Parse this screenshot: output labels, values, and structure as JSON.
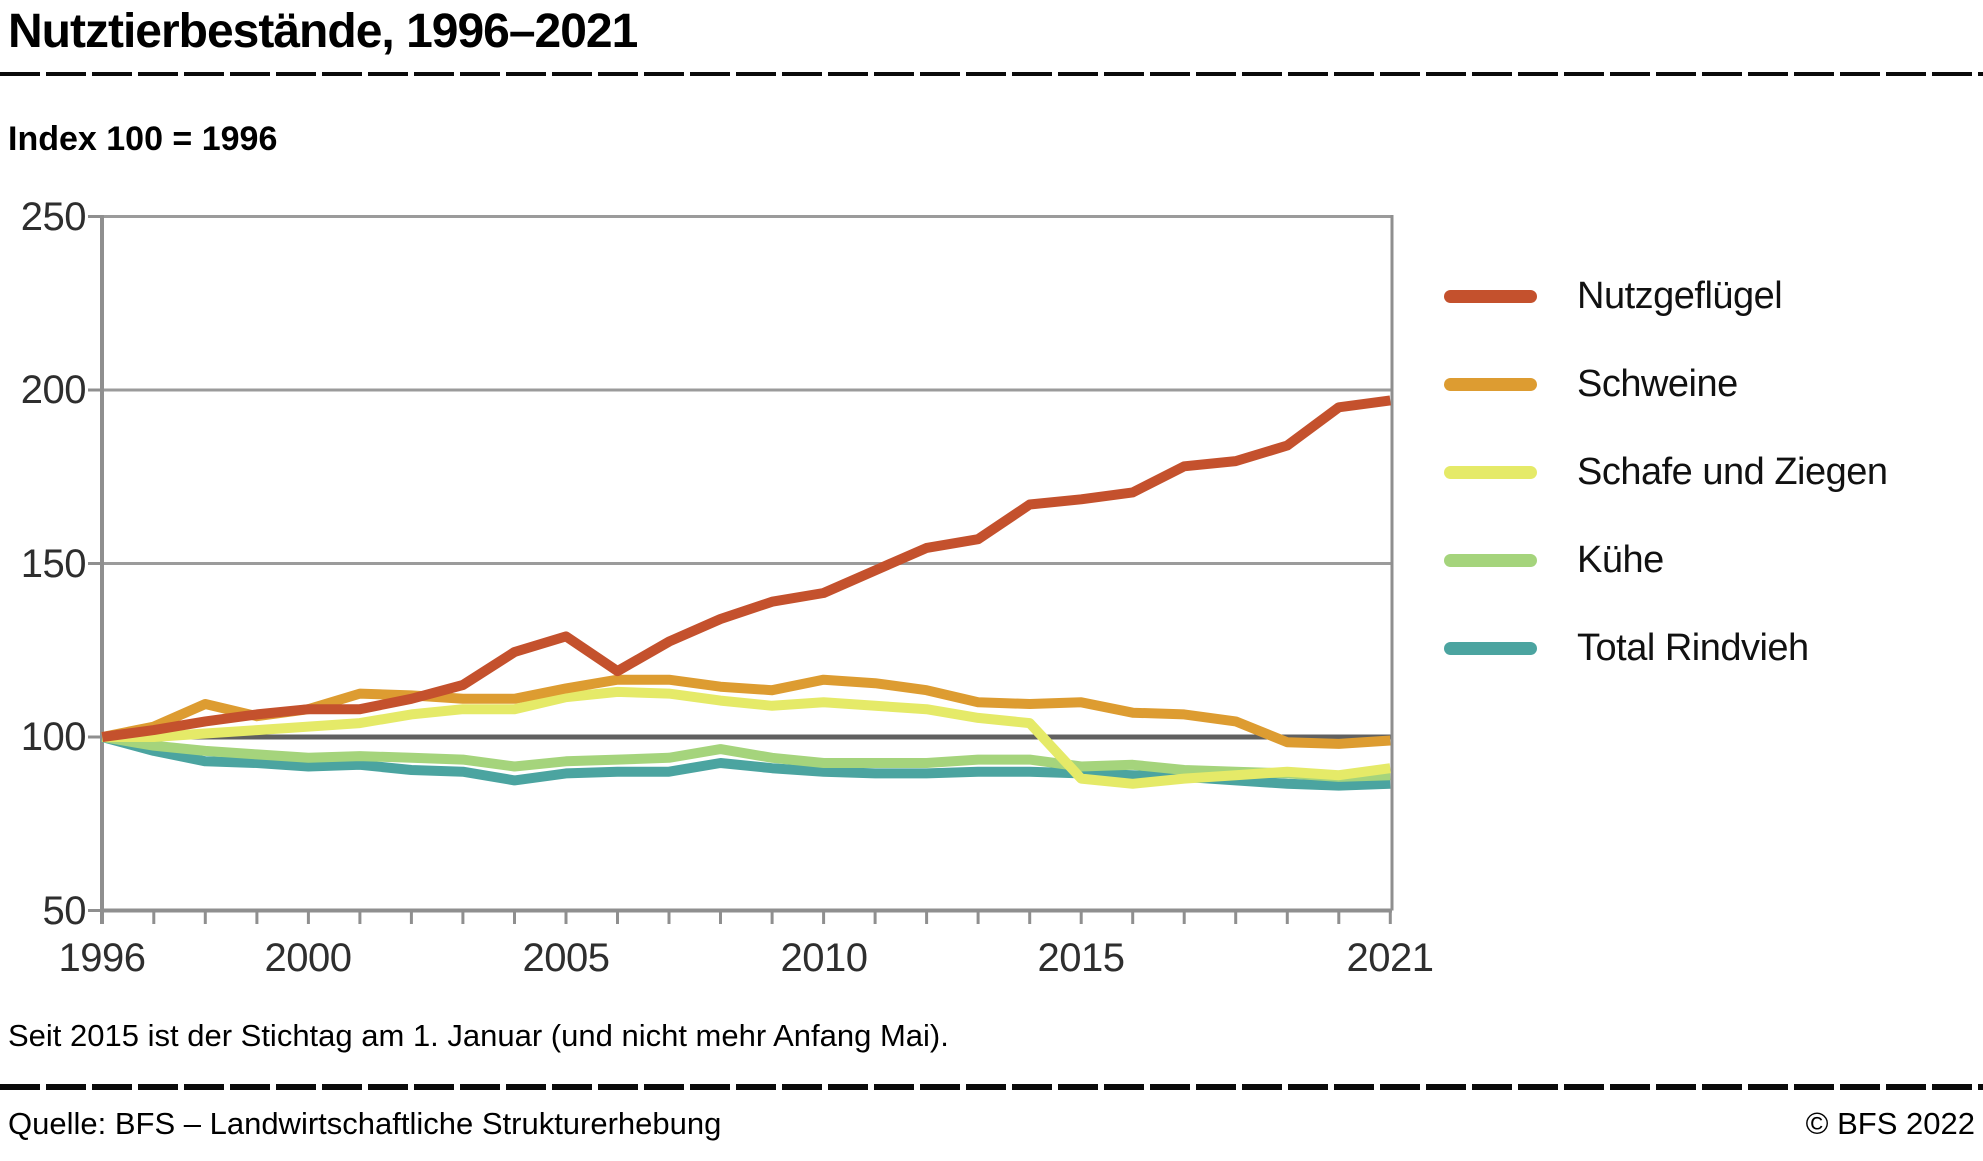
{
  "header": {
    "title": "Nutztierbestände, 1996–2021",
    "subtitle": "Index 100 = 1996"
  },
  "footer": {
    "footnote": "Seit 2015 ist der Stichtag am 1. Januar (und nicht mehr Anfang Mai).",
    "source": "Quelle: BFS – Landwirtschaftliche Strukturerhebung",
    "copyright": "© BFS 2022"
  },
  "chart_data": {
    "type": "line",
    "title": "Nutztierbestände, 1996–2021",
    "subtitle": "Index 100 = 1996",
    "xlabel": "",
    "ylabel": "",
    "ylim": [
      50,
      250
    ],
    "baseline_value": 100,
    "grid": "horizontal",
    "legend_position": "right",
    "x": [
      1996,
      1997,
      1998,
      1999,
      2000,
      2001,
      2002,
      2003,
      2004,
      2005,
      2006,
      2007,
      2008,
      2009,
      2010,
      2011,
      2012,
      2013,
      2014,
      2015,
      2016,
      2017,
      2018,
      2019,
      2020,
      2021
    ],
    "x_tick_labels": [
      "1996",
      "2000",
      "2005",
      "2010",
      "2015",
      "2021"
    ],
    "y_ticks": [
      "250",
      "200",
      "150",
      "100",
      "50"
    ],
    "series": [
      {
        "id": "nutzgefluegel",
        "name": "Nutzgeflügel",
        "color": "#c4512d",
        "values": [
          100,
          102,
          104.5,
          106.5,
          108,
          108,
          111,
          115,
          124.5,
          129,
          119,
          127.5,
          134,
          139,
          141.5,
          148,
          154.5,
          157,
          167,
          168.5,
          170.5,
          178,
          179.5,
          184,
          195,
          197
        ]
      },
      {
        "id": "schweine",
        "name": "Schweine",
        "color": "#dd9c31",
        "values": [
          100,
          103,
          109.5,
          106,
          108,
          112.5,
          112,
          111,
          111,
          114,
          116.5,
          116.5,
          114.5,
          113.5,
          116.5,
          115.5,
          113.5,
          110,
          109.5,
          110,
          107,
          106.5,
          104.5,
          98.5,
          98,
          99
        ]
      },
      {
        "id": "schafe-und-ziegen",
        "name": "Schafe und Ziegen",
        "color": "#e5ea68",
        "values": [
          100,
          100,
          101,
          102,
          103,
          104,
          106.5,
          108,
          108,
          111.5,
          113,
          112.5,
          110.5,
          109,
          110,
          109,
          108,
          105.5,
          104,
          88,
          86.5,
          88,
          89,
          90,
          89,
          91
        ]
      },
      {
        "id": "kuehe",
        "name": "Kühe",
        "color": "#a5d47c",
        "values": [
          100,
          97.5,
          96,
          95,
          94,
          94.5,
          94,
          93.5,
          91.5,
          93,
          93.5,
          94,
          96.5,
          94,
          92.5,
          92.5,
          92.5,
          93.5,
          93.5,
          91.5,
          92,
          90.5,
          90,
          89.5,
          88.5,
          89
        ]
      },
      {
        "id": "total-rindvieh",
        "name": "Total Rindvieh",
        "color": "#4ba4a0",
        "values": [
          100,
          96,
          93,
          92.5,
          91.5,
          92,
          90.5,
          90,
          87.5,
          89.5,
          90,
          90,
          92.5,
          91,
          90,
          89.5,
          89.5,
          90,
          90,
          89.5,
          89,
          88.5,
          87.5,
          86.5,
          86,
          86.5
        ]
      }
    ]
  },
  "legend_item_tops": [
    276,
    364,
    452,
    540,
    628
  ]
}
